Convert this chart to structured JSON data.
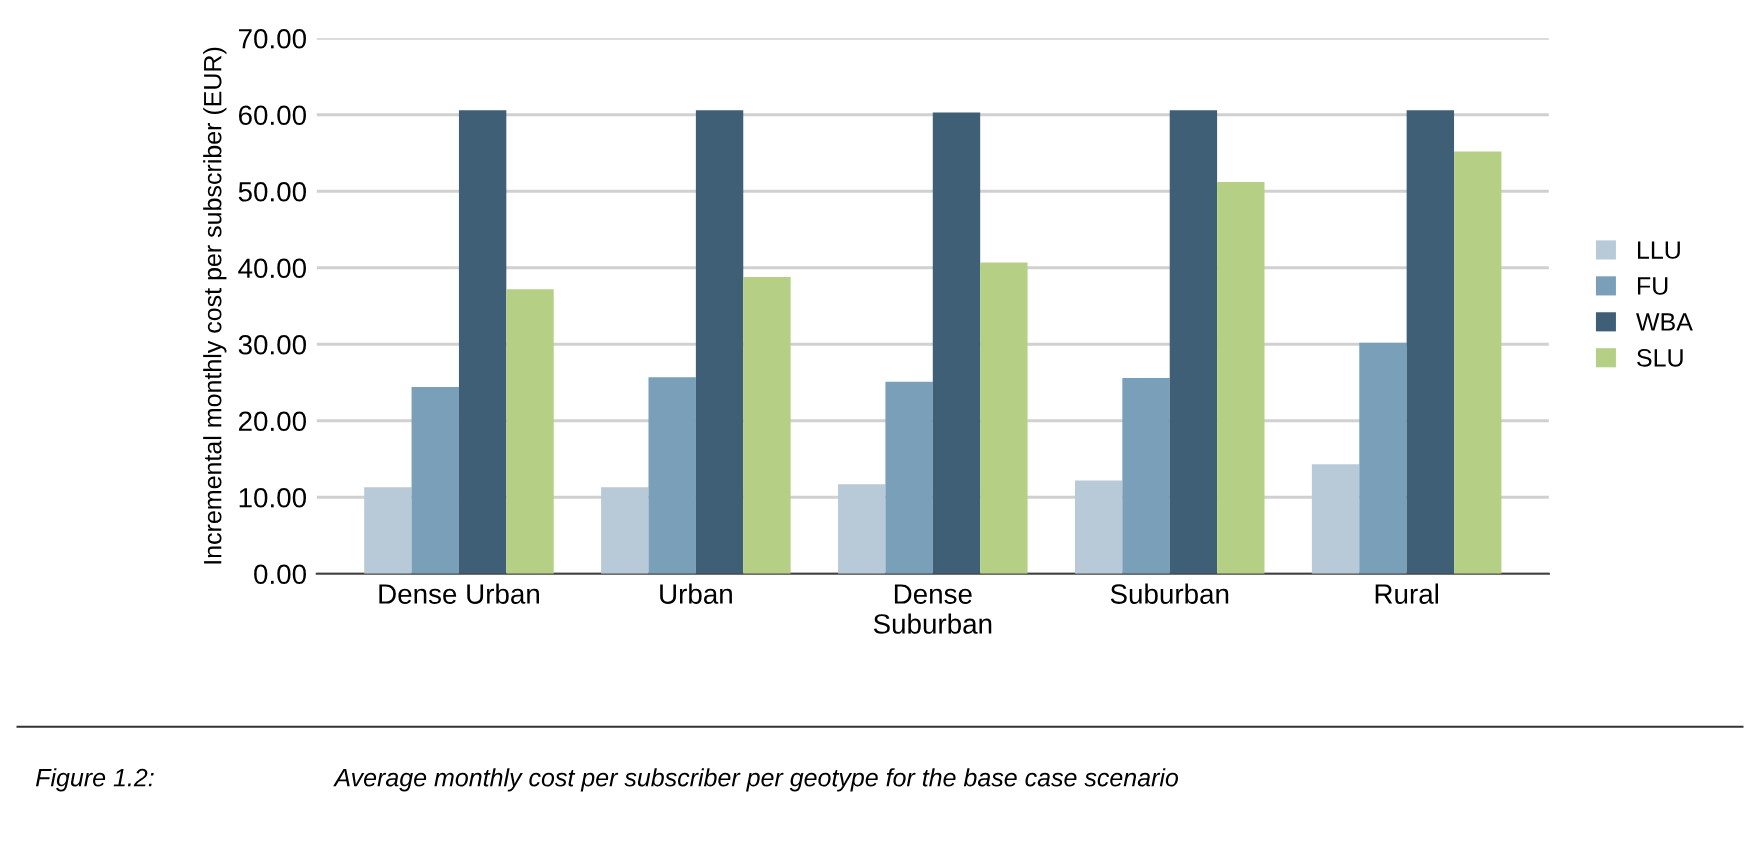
{
  "chart_data": {
    "type": "bar",
    "ylabel": "Incremental monthly cost per subscriber (EUR)",
    "categories": [
      "Dense Urban",
      "Urban",
      "Dense\nSuburban",
      "Suburban",
      "Rural"
    ],
    "series": [
      {
        "name": "LLU",
        "color": "#b8c9d8",
        "values": [
          11.3,
          11.3,
          11.7,
          12.2,
          14.3
        ]
      },
      {
        "name": "FU",
        "color": "#7a9fb9",
        "values": [
          24.4,
          25.7,
          25.1,
          25.6,
          30.2
        ]
      },
      {
        "name": "WBA",
        "color": "#3e5f75",
        "values": [
          60.6,
          60.6,
          60.3,
          60.6,
          60.6
        ]
      },
      {
        "name": "SLU",
        "color": "#b5d085",
        "values": [
          37.2,
          38.8,
          40.7,
          51.2,
          55.2
        ]
      }
    ],
    "ylim": [
      0,
      70
    ],
    "yticks": [
      {
        "value": 0,
        "label": "0.00"
      },
      {
        "value": 10,
        "label": "10.00"
      },
      {
        "value": 20,
        "label": "20.00"
      },
      {
        "value": 30,
        "label": "30.00"
      },
      {
        "value": 40,
        "label": "40.00"
      },
      {
        "value": 50,
        "label": "50.00"
      },
      {
        "value": 60,
        "label": "60.00"
      },
      {
        "value": 70,
        "label": "70.00"
      }
    ],
    "grid": "y",
    "legend": "right",
    "annotations": [
      "Figure 1.2:",
      "Average monthly cost per subscriber per geotype for the base case scenario"
    ]
  }
}
